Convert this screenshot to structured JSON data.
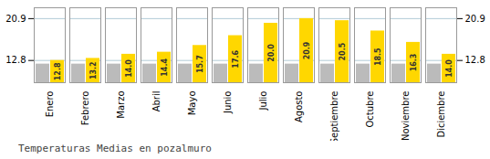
{
  "chart_data": {
    "type": "bar",
    "title": "Temperaturas Medias en pozalmuro",
    "categories": [
      "Enero",
      "Febrero",
      "Marzo",
      "Abril",
      "Mayo",
      "Junio",
      "Julio",
      "Agosto",
      "Septiembre",
      "Octubre",
      "Noviembre",
      "Diciembre"
    ],
    "series": [
      {
        "color": "#BBBBBB",
        "values": [
          12.1,
          12.1,
          12.1,
          12.1,
          12.1,
          12.1,
          12.1,
          12.1,
          12.1,
          12.1,
          12.1,
          12.1
        ]
      },
      {
        "color": "#FFD700",
        "values": [
          12.8,
          13.2,
          14.0,
          14.4,
          15.7,
          17.6,
          20.0,
          20.9,
          20.5,
          18.5,
          16.3,
          14.0
        ],
        "value_labels": [
          "12.8",
          "13.2",
          "14.0",
          "14.4",
          "15.7",
          "17.6",
          "20.0",
          "20.9",
          "20.5",
          "18.5",
          "16.3",
          "14.0"
        ],
        "data_labels": true
      }
    ],
    "ylim": [
      8.5,
      23.0
    ],
    "yticks": [
      12.8,
      20.9
    ],
    "grid": true
  }
}
